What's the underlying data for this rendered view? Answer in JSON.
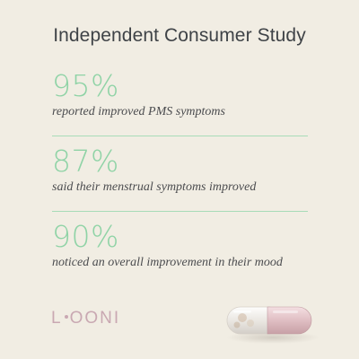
{
  "title": "Independent Consumer Study",
  "stats": [
    {
      "value": "95%",
      "caption": "reported improved PMS symptoms"
    },
    {
      "value": "87%",
      "caption": "said their menstrual symptoms improved"
    },
    {
      "value": "90%",
      "caption": "noticed an overall improvement in their mood"
    }
  ],
  "brand": {
    "left": "L",
    "right": "OONI"
  },
  "colors": {
    "background": "#f1ede3",
    "accent": "#8fd3a6",
    "text": "#3f4347",
    "brand": "#c9a8b2"
  },
  "icons": {
    "product": "capsule-icon"
  }
}
